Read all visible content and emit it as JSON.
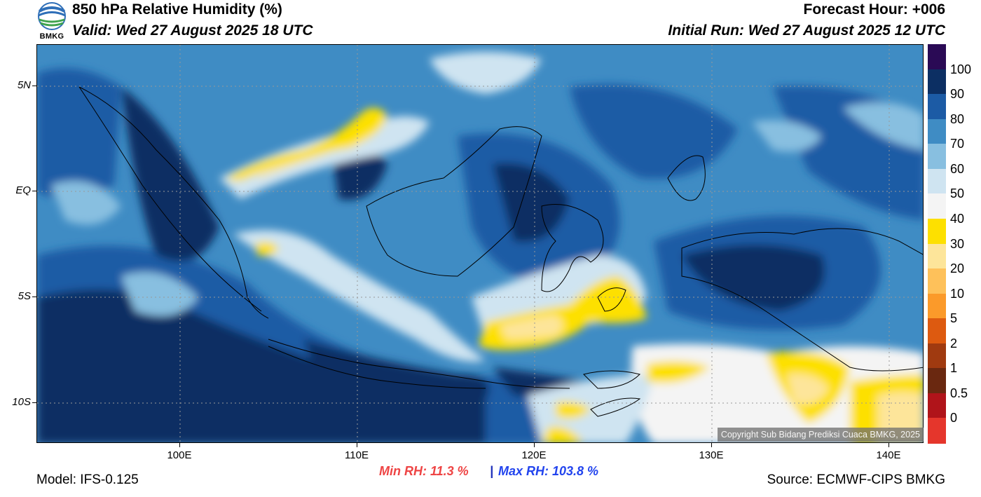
{
  "header": {
    "title": "850 hPa Relative Humidity (%)",
    "valid": "Valid: Wed 27 August 2025 18 UTC",
    "forecast_hour": "Forecast Hour: +006",
    "initial_run": "Initial Run: Wed 27 August 2025 12 UTC"
  },
  "logo": {
    "text": "BMKG",
    "icon": "bmkg-logo-icon"
  },
  "map": {
    "lat_labels": [
      "5N",
      "EQ",
      "5S",
      "10S"
    ],
    "lon_labels": [
      "100E",
      "110E",
      "120E",
      "130E",
      "140E"
    ],
    "copyright": "Copyright Sub Bidang Prediksi Cuaca BMKG, 2025"
  },
  "colorbar": {
    "labels": [
      "100",
      "90",
      "80",
      "70",
      "60",
      "50",
      "40",
      "30",
      "20",
      "10",
      "5",
      "2",
      "1",
      "0.5",
      "0"
    ],
    "colors": [
      "#2a0a55",
      "#0c2f63",
      "#1c5ba5",
      "#3f8cc4",
      "#88bfe0",
      "#cfe4f1",
      "#f4f4f4",
      "#fde000",
      "#fde59a",
      "#fec15a",
      "#fb9a2a",
      "#dd5a10",
      "#a03a10",
      "#6a2810",
      "#b0141a",
      "#e5362c"
    ]
  },
  "footer": {
    "model": "Model: IFS-0.125",
    "min_rh": "Min RH:  11.3 %",
    "separator": "|",
    "max_rh": "Max RH: 103.8 %",
    "source": "Source: ECMWF-CIPS BMKG"
  },
  "colors": {
    "min_rh": "#ee4444",
    "max_rh": "#2244ee"
  }
}
